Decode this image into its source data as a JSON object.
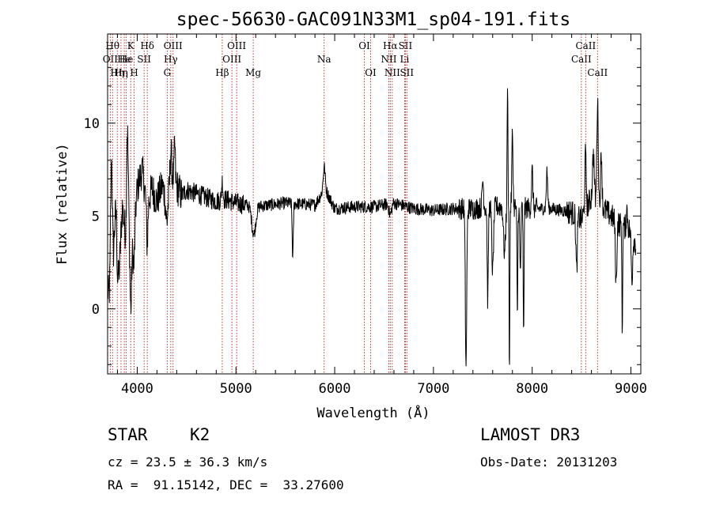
{
  "chart_data": {
    "type": "line",
    "title": "spec-56630-GAC091N33M1_sp04-191.fits",
    "xlabel": "Wavelength (Å)",
    "ylabel": "Flux (relative)",
    "xlim": [
      3700,
      9100
    ],
    "ylim": [
      -3.5,
      14.8
    ],
    "xticks": [
      4000,
      5000,
      6000,
      7000,
      8000,
      9000
    ],
    "xtick_labels": [
      "4000",
      "5000",
      "6000",
      "7000",
      "8000",
      "9000"
    ],
    "yticks": [
      0,
      5,
      10
    ],
    "ytick_labels": [
      "0",
      "5",
      "10"
    ],
    "line_color": "#000000",
    "marker_color": "#b22222",
    "spectrum_knots": [
      [
        3700,
        1.5
      ],
      [
        3730,
        5.5
      ],
      [
        3760,
        3.0
      ],
      [
        3790,
        6.8
      ],
      [
        3820,
        2.5
      ],
      [
        3850,
        5.5
      ],
      [
        3880,
        4.0
      ],
      [
        3910,
        5.8
      ],
      [
        3940,
        3.0
      ],
      [
        3970,
        4.5
      ],
      [
        4000,
        6.5
      ],
      [
        4050,
        7.5
      ],
      [
        4100,
        5.5
      ],
      [
        4150,
        6.5
      ],
      [
        4200,
        5.8
      ],
      [
        4250,
        6.6
      ],
      [
        4300,
        6.2
      ],
      [
        4350,
        7.2
      ],
      [
        4400,
        6.6
      ],
      [
        4450,
        6.1
      ],
      [
        4500,
        6.4
      ],
      [
        4600,
        6.2
      ],
      [
        4700,
        6.0
      ],
      [
        4800,
        5.8
      ],
      [
        4900,
        5.9
      ],
      [
        5000,
        5.7
      ],
      [
        5200,
        5.5
      ],
      [
        5500,
        5.7
      ],
      [
        5800,
        5.6
      ],
      [
        5900,
        6.5
      ],
      [
        6000,
        5.4
      ],
      [
        6200,
        5.5
      ],
      [
        6400,
        5.5
      ],
      [
        6600,
        5.7
      ],
      [
        6800,
        5.4
      ],
      [
        7000,
        5.3
      ],
      [
        7200,
        5.4
      ],
      [
        7400,
        5.4
      ],
      [
        7600,
        5.5
      ],
      [
        7800,
        5.5
      ],
      [
        8000,
        5.4
      ],
      [
        8200,
        5.4
      ],
      [
        8400,
        5.2
      ],
      [
        8500,
        4.8
      ],
      [
        8600,
        6.0
      ],
      [
        8700,
        5.5
      ],
      [
        8800,
        5.0
      ],
      [
        8900,
        4.5
      ],
      [
        9000,
        4.2
      ],
      [
        9050,
        3.5
      ]
    ],
    "spectrum_features": [
      [
        3720,
        -3.0,
        16
      ],
      [
        3740,
        4.0,
        10
      ],
      [
        3800,
        -3.5,
        14
      ],
      [
        3900,
        4.5,
        10
      ],
      [
        3933,
        -3.5,
        12
      ],
      [
        3968,
        -2.0,
        12
      ],
      [
        4101,
        -2.0,
        10
      ],
      [
        4300,
        -1.5,
        18
      ],
      [
        4340,
        1.5,
        10
      ],
      [
        4380,
        2.0,
        8
      ],
      [
        4861,
        1.0,
        10
      ],
      [
        5180,
        -1.5,
        28
      ],
      [
        5575,
        -3.0,
        8
      ],
      [
        5893,
        1.2,
        14
      ],
      [
        6563,
        -0.6,
        18
      ],
      [
        7330,
        -8.5,
        10
      ],
      [
        7500,
        1.5,
        10
      ],
      [
        7550,
        -5.0,
        8
      ],
      [
        7600,
        -3.5,
        12
      ],
      [
        7720,
        -2.5,
        14
      ],
      [
        7750,
        6.5,
        6
      ],
      [
        7770,
        -9.0,
        5
      ],
      [
        7800,
        4.0,
        8
      ],
      [
        7850,
        -6.0,
        6
      ],
      [
        7880,
        -3.5,
        8
      ],
      [
        7913,
        -7.0,
        6
      ],
      [
        8000,
        2.0,
        10
      ],
      [
        8150,
        2.0,
        10
      ],
      [
        8450,
        -3.0,
        10
      ],
      [
        8540,
        3.0,
        10
      ],
      [
        8620,
        2.5,
        12
      ],
      [
        8662,
        5.5,
        10
      ],
      [
        8700,
        3.0,
        10
      ],
      [
        8850,
        -3.5,
        10
      ],
      [
        8912,
        -6.0,
        5
      ],
      [
        8960,
        1.0,
        10
      ],
      [
        9010,
        -2.5,
        10
      ]
    ],
    "lines": [
      {
        "wave": 3727,
        "label": "OII",
        "row": 2
      },
      {
        "wave": 3750,
        "label": "Hθ",
        "row": 1
      },
      {
        "wave": 3798,
        "label": "Hη",
        "row": 3
      },
      {
        "wave": 3836,
        "label": "Hη",
        "row": 3
      },
      {
        "wave": 3869,
        "label": "He",
        "row": 2
      },
      {
        "wave": 3889,
        "label": "He",
        "row": 2
      },
      {
        "wave": 3934,
        "label": "K",
        "row": 1
      },
      {
        "wave": 3969,
        "label": "H",
        "row": 3
      },
      {
        "wave": 4070,
        "label": "SII",
        "row": 2
      },
      {
        "wave": 4102,
        "label": "Hδ",
        "row": 1
      },
      {
        "wave": 4304,
        "label": "G",
        "row": 3
      },
      {
        "wave": 4340,
        "label": "Hγ",
        "row": 2
      },
      {
        "wave": 4363,
        "label": "OIII",
        "row": 1
      },
      {
        "wave": 4861,
        "label": "Hβ",
        "row": 3
      },
      {
        "wave": 4959,
        "label": "OIII",
        "row": 2
      },
      {
        "wave": 5007,
        "label": "OIII",
        "row": 1
      },
      {
        "wave": 5175,
        "label": "Mg",
        "row": 3
      },
      {
        "wave": 5893,
        "label": "Na",
        "row": 2
      },
      {
        "wave": 6300,
        "label": "OI",
        "row": 1
      },
      {
        "wave": 6364,
        "label": "OI",
        "row": 3
      },
      {
        "wave": 6548,
        "label": "NII",
        "row": 2
      },
      {
        "wave": 6563,
        "label": "Hα",
        "row": 1
      },
      {
        "wave": 6583,
        "label": "NII",
        "row": 3
      },
      {
        "wave": 6708,
        "label": "Li",
        "row": 2
      },
      {
        "wave": 6716,
        "label": "SII",
        "row": 1
      },
      {
        "wave": 6731,
        "label": "SII",
        "row": 3
      },
      {
        "wave": 8498,
        "label": "CaII",
        "row": 2
      },
      {
        "wave": 8542,
        "label": "CaII",
        "row": 1
      },
      {
        "wave": 8662,
        "label": "CaII",
        "row": 3
      }
    ]
  },
  "info": {
    "object_class": "STAR",
    "subclass": "K2",
    "cz": "cz = 23.5 ± 36.3 km/s",
    "coords": "RA =  91.15142, DEC =  33.27600",
    "survey": "LAMOST DR3",
    "obs_date": "Obs-Date: 20131203"
  }
}
